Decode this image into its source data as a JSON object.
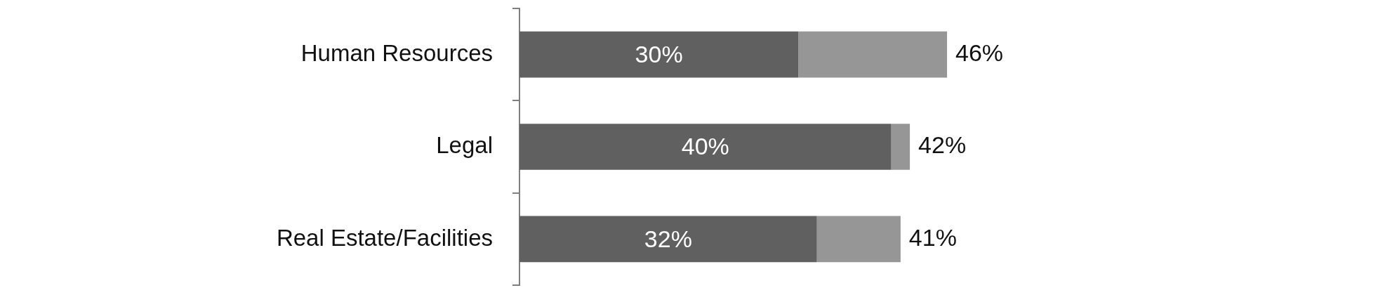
{
  "chart_data": {
    "type": "bar",
    "orientation": "horizontal",
    "stacked": true,
    "categories": [
      "Human Resources",
      "Legal",
      "Real Estate/Facilities"
    ],
    "series": [
      {
        "color": "#606060",
        "values": [
          30,
          40,
          32
        ],
        "value_labels": [
          "30%",
          "40%",
          "32%"
        ]
      },
      {
        "color": "#969696",
        "values": [
          16,
          2,
          9
        ]
      }
    ],
    "totals": [
      "46%",
      "42%",
      "41%"
    ],
    "tick_labels": "y"
  }
}
